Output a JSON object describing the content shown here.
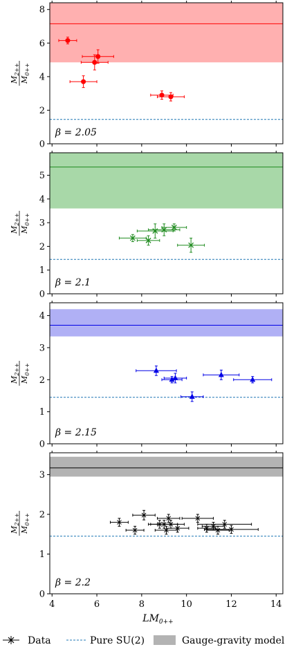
{
  "colors": {
    "red": "#ff0000",
    "green": "#1f8b1f",
    "blue": "#0000e6",
    "black": "#000000",
    "pure_line": "#1f77b4"
  },
  "chart_data": [
    {
      "type": "scatter",
      "beta_label": "β = 2.05",
      "color": "#ff0000",
      "marker": "circle",
      "band_fill": "#ffb0b0",
      "band": {
        "low": 4.85,
        "high": 8.5,
        "center": 7.15
      },
      "pure_su2": 1.45,
      "ylabel": "M2++/M0++",
      "ylim": [
        0,
        8.4
      ],
      "yticks": [
        0,
        2,
        4,
        6,
        8
      ],
      "points": [
        {
          "x": 4.7,
          "y": 6.15,
          "xerr": 0.4,
          "yerr": 0.2
        },
        {
          "x": 6.05,
          "y": 5.2,
          "xerr": 0.7,
          "yerr": 0.4
        },
        {
          "x": 5.9,
          "y": 4.85,
          "xerr": 0.6,
          "yerr": 0.45
        },
        {
          "x": 5.4,
          "y": 3.7,
          "xerr": 0.6,
          "yerr": 0.35
        },
        {
          "x": 8.9,
          "y": 2.9,
          "xerr": 0.5,
          "yerr": 0.25
        },
        {
          "x": 9.3,
          "y": 2.8,
          "xerr": 0.6,
          "yerr": 0.25
        }
      ]
    },
    {
      "type": "scatter",
      "beta_label": "β = 2.1",
      "color": "#1f8b1f",
      "marker": "x",
      "band_fill": "#a8d8a8",
      "band": {
        "low": 3.6,
        "high": 5.95,
        "center": 5.35
      },
      "pure_su2": 1.45,
      "ylabel": "M2++/M0++",
      "ylim": [
        0,
        5.95
      ],
      "yticks": [
        0,
        1,
        2,
        3,
        4,
        5
      ],
      "points": [
        {
          "x": 7.6,
          "y": 2.35,
          "xerr": 0.6,
          "yerr": 0.15
        },
        {
          "x": 8.3,
          "y": 2.25,
          "xerr": 0.5,
          "yerr": 0.2
        },
        {
          "x": 8.6,
          "y": 2.65,
          "xerr": 0.8,
          "yerr": 0.3
        },
        {
          "x": 9.0,
          "y": 2.7,
          "xerr": 0.7,
          "yerr": 0.25
        },
        {
          "x": 9.45,
          "y": 2.8,
          "xerr": 0.55,
          "yerr": 0.15
        },
        {
          "x": 10.2,
          "y": 2.05,
          "xerr": 0.6,
          "yerr": 0.3
        }
      ]
    },
    {
      "type": "scatter",
      "beta_label": "β = 2.15",
      "color": "#0000e6",
      "marker": "triangle",
      "band_fill": "#b0b0f5",
      "band": {
        "low": 3.35,
        "high": 4.2,
        "center": 3.7
      },
      "pure_su2": 1.45,
      "ylabel": "M2++/M0++",
      "ylim": [
        0,
        4.4
      ],
      "yticks": [
        0,
        1,
        2,
        3,
        4
      ],
      "points": [
        {
          "x": 8.65,
          "y": 2.28,
          "xerr": 0.9,
          "yerr": 0.15
        },
        {
          "x": 9.35,
          "y": 2.0,
          "xerr": 0.45,
          "yerr": 0.1
        },
        {
          "x": 9.5,
          "y": 2.05,
          "xerr": 0.5,
          "yerr": 0.15
        },
        {
          "x": 10.25,
          "y": 1.47,
          "xerr": 0.5,
          "yerr": 0.15
        },
        {
          "x": 11.55,
          "y": 2.15,
          "xerr": 0.8,
          "yerr": 0.15
        },
        {
          "x": 12.95,
          "y": 2.0,
          "xerr": 0.85,
          "yerr": 0.1
        }
      ]
    },
    {
      "type": "scatter",
      "beta_label": "β = 2.2",
      "color": "#000000",
      "marker": "plus",
      "band_fill": "#b3b3b3",
      "band": {
        "low": 2.95,
        "high": 3.45,
        "center": 3.17
      },
      "pure_su2": 1.45,
      "ylabel": "M2++/M0++",
      "xlabel": "LM0++",
      "ylim": [
        0,
        3.55
      ],
      "xlim": [
        3.9,
        14.3
      ],
      "yticks": [
        0,
        1,
        2,
        3
      ],
      "xticks": [
        4,
        6,
        8,
        10,
        12,
        14
      ],
      "points": [
        {
          "x": 7.0,
          "y": 1.8,
          "xerr": 0.4,
          "yerr": 0.1
        },
        {
          "x": 7.7,
          "y": 1.6,
          "xerr": 0.4,
          "yerr": 0.1
        },
        {
          "x": 8.1,
          "y": 1.98,
          "xerr": 0.5,
          "yerr": 0.12
        },
        {
          "x": 8.8,
          "y": 1.75,
          "xerr": 0.5,
          "yerr": 0.1
        },
        {
          "x": 9.0,
          "y": 1.75,
          "xerr": 0.6,
          "yerr": 0.1
        },
        {
          "x": 9.1,
          "y": 1.6,
          "xerr": 0.5,
          "yerr": 0.1
        },
        {
          "x": 9.2,
          "y": 1.9,
          "xerr": 0.5,
          "yerr": 0.1
        },
        {
          "x": 9.3,
          "y": 1.75,
          "xerr": 0.6,
          "yerr": 0.1
        },
        {
          "x": 9.6,
          "y": 1.65,
          "xerr": 0.5,
          "yerr": 0.1
        },
        {
          "x": 10.5,
          "y": 1.9,
          "xerr": 0.7,
          "yerr": 0.1
        },
        {
          "x": 10.9,
          "y": 1.65,
          "xerr": 0.4,
          "yerr": 0.1
        },
        {
          "x": 11.2,
          "y": 1.7,
          "xerr": 0.5,
          "yerr": 0.1
        },
        {
          "x": 11.4,
          "y": 1.6,
          "xerr": 0.5,
          "yerr": 0.1
        },
        {
          "x": 11.7,
          "y": 1.75,
          "xerr": 1.2,
          "yerr": 0.1
        },
        {
          "x": 12.0,
          "y": 1.62,
          "xerr": 1.2,
          "yerr": 0.1
        }
      ]
    }
  ],
  "legend": {
    "data_label": "Data",
    "pure_label": "Pure SU(2)",
    "model_label": "Gauge-gravity model"
  }
}
